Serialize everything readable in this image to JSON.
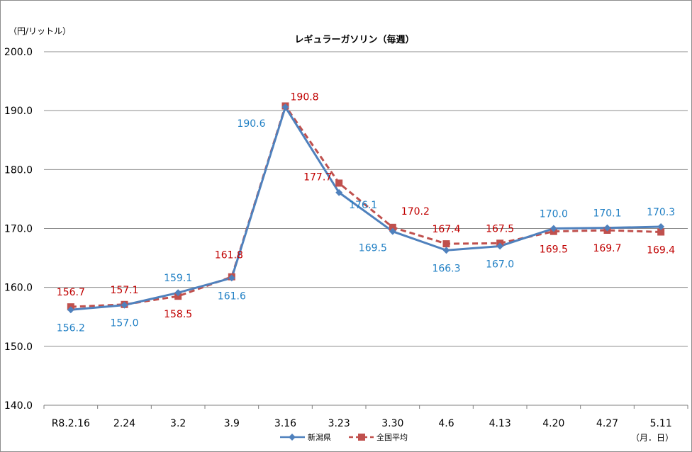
{
  "chart_data": {
    "type": "line",
    "title": "レギュラーガソリン（毎週）",
    "ylabel": "（円/リットル）",
    "xlabel": "（月．日）",
    "ylim": [
      140.0,
      200.0
    ],
    "yticks": [
      "140.0",
      "150.0",
      "160.0",
      "170.0",
      "180.0",
      "190.0",
      "200.0"
    ],
    "grid": true,
    "legend_position": "bottom",
    "categories": [
      "R8.2.16",
      "2.24",
      "3.2",
      "3.9",
      "3.16",
      "3.23",
      "3.30",
      "4.6",
      "4.13",
      "4.20",
      "4.27",
      "5.11"
    ],
    "series": [
      {
        "name": "新潟県",
        "color": "#4f81bd",
        "label_color": "#1f7fc4",
        "line_style": "solid",
        "marker": "diamond",
        "values": [
          156.2,
          157.0,
          159.1,
          161.6,
          190.6,
          176.1,
          169.5,
          166.3,
          167.0,
          170.0,
          170.1,
          170.3
        ],
        "labels": [
          "156.2",
          "157.0",
          "159.1",
          "161.6",
          "190.6",
          "176.1",
          "169.5",
          "166.3",
          "167.0",
          "170.0",
          "170.1",
          "170.3"
        ]
      },
      {
        "name": "全国平均",
        "color": "#c0504d",
        "label_color": "#c00000",
        "line_style": "dashed",
        "marker": "square",
        "values": [
          156.7,
          157.1,
          158.5,
          161.8,
          190.8,
          177.7,
          170.2,
          167.4,
          167.5,
          169.5,
          169.7,
          169.4
        ],
        "labels": [
          "156.7",
          "157.1",
          "158.5",
          "161.8",
          "190.8",
          "177.7",
          "170.2",
          "167.4",
          "167.5",
          "169.5",
          "169.7",
          "169.4"
        ]
      }
    ]
  }
}
